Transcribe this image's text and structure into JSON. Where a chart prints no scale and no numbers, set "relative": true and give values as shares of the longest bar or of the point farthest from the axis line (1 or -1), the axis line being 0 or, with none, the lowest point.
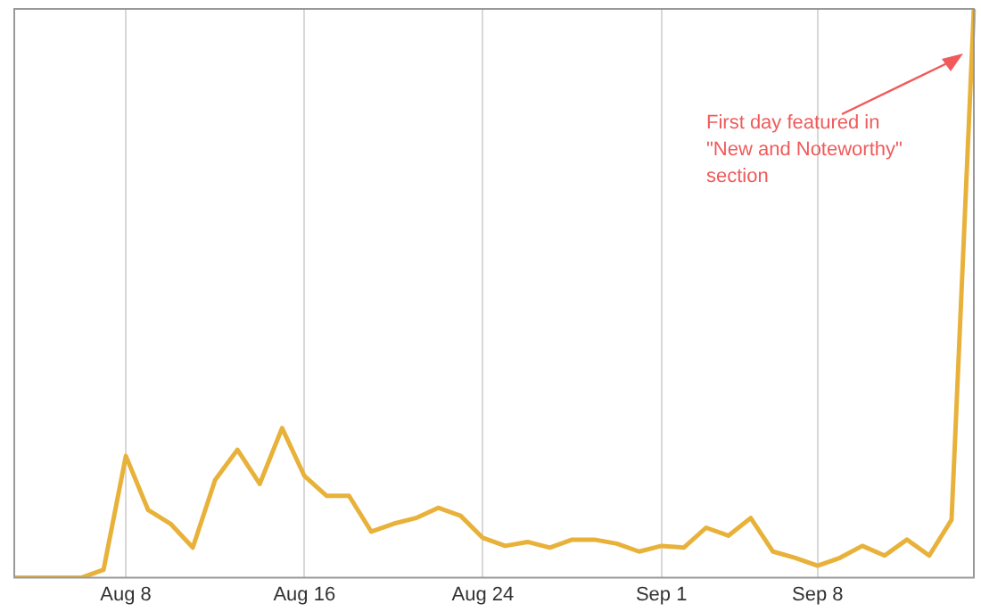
{
  "chart_data": {
    "type": "line",
    "relative": true,
    "grid": "x",
    "marker": "none",
    "line_style": "solid",
    "color": "#e8b23a",
    "categories": [
      null,
      null,
      null,
      null,
      null,
      "Aug 8",
      null,
      null,
      null,
      null,
      null,
      null,
      null,
      "Aug 16",
      null,
      null,
      null,
      null,
      null,
      null,
      null,
      "Aug 24",
      null,
      null,
      null,
      null,
      null,
      null,
      null,
      "Sep 1",
      null,
      null,
      null,
      null,
      null,
      null,
      "Sep 8",
      null,
      null,
      null,
      null,
      null,
      null,
      null
    ],
    "values": [
      0,
      0,
      0,
      0,
      0.014,
      0.214,
      0.119,
      0.095,
      0.053,
      0.172,
      0.225,
      0.165,
      0.263,
      0.179,
      0.144,
      0.144,
      0.081,
      0.095,
      0.105,
      0.123,
      0.109,
      0.07,
      0.056,
      0.063,
      0.053,
      0.067,
      0.067,
      0.06,
      0.046,
      0.056,
      0.053,
      0.088,
      0.074,
      0.105,
      0.046,
      0.035,
      0.021,
      0.035,
      0.056,
      0.039,
      0.067,
      0.039,
      0.102,
      1
    ],
    "annotations": [
      "First day featured in \"New and Noteworthy\" section"
    ]
  }
}
